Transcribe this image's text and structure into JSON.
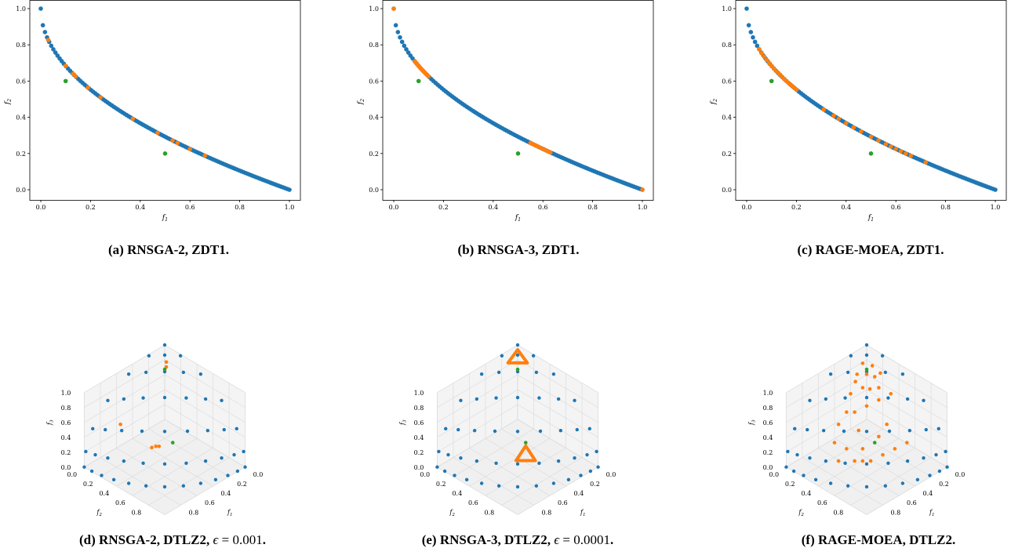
{
  "colors": {
    "pareto": "#1f77b4",
    "solutions": "#ff7f0e",
    "reference": "#2ca02c"
  },
  "captions": {
    "a": "(a) RNSGA-2, ZDT1.",
    "b": "(b) RNSGA-3, ZDT1.",
    "c": "(c) RAGE-MOEA, ZDT1.",
    "d_prefix": "(d) RNSGA-2, DTLZ2, ",
    "d_eps": "ϵ",
    "d_value": " = 0.001",
    "d_suffix": ".",
    "e_prefix": "(e) RNSGA-3, DTLZ2, ",
    "e_eps": "ϵ",
    "e_value": " = 0.0001",
    "e_suffix": ".",
    "f": "(f) RAGE-MOEA, DTLZ2."
  },
  "chart_data": [
    {
      "type": "scatter",
      "id": "a",
      "xlabel": "f1",
      "ylabel": "f2",
      "xlim": [
        0,
        1
      ],
      "ylim": [
        0,
        1
      ],
      "xticks": [
        "0.0",
        "0.2",
        "0.4",
        "0.6",
        "0.8",
        "1.0"
      ],
      "yticks": [
        "0.0",
        "0.2",
        "0.4",
        "0.6",
        "0.8",
        "1.0"
      ],
      "series": [
        {
          "role": "pareto",
          "front": "1-sqrt(x)",
          "count": 120
        },
        {
          "role": "solutions",
          "x": [
            0.03,
            0.1,
            0.13,
            0.14,
            0.19,
            0.24,
            0.37,
            0.47,
            0.53,
            0.55,
            0.6,
            0.66
          ]
        },
        {
          "role": "reference",
          "x": [
            0.1,
            0.5
          ],
          "y": [
            0.6,
            0.2
          ]
        }
      ]
    },
    {
      "type": "scatter",
      "id": "b",
      "xlabel": "f1",
      "ylabel": "f2",
      "xlim": [
        0,
        1
      ],
      "ylim": [
        0,
        1
      ],
      "xticks": [
        "0.0",
        "0.2",
        "0.4",
        "0.6",
        "0.8",
        "1.0"
      ],
      "yticks": [
        "0.0",
        "0.2",
        "0.4",
        "0.6",
        "0.8",
        "1.0"
      ],
      "series": [
        {
          "role": "pareto",
          "front": "1-sqrt(x)",
          "count": 120
        },
        {
          "role": "solutions",
          "x": [
            0.0,
            0.085,
            0.088,
            0.09,
            0.093,
            0.096,
            0.1,
            0.105,
            0.11,
            0.115,
            0.12,
            0.125,
            0.13,
            0.135,
            0.14,
            0.55,
            0.56,
            0.57,
            0.58,
            0.59,
            0.6,
            0.61,
            0.62,
            0.63,
            1.0
          ]
        },
        {
          "role": "reference",
          "x": [
            0.1,
            0.5
          ],
          "y": [
            0.6,
            0.2
          ]
        }
      ]
    },
    {
      "type": "scatter",
      "id": "c",
      "xlabel": "f1",
      "ylabel": "f2",
      "xlim": [
        0,
        1
      ],
      "ylim": [
        0,
        1
      ],
      "xticks": [
        "0.0",
        "0.2",
        "0.4",
        "0.6",
        "0.8",
        "1.0"
      ],
      "yticks": [
        "0.0",
        "0.2",
        "0.4",
        "0.6",
        "0.8",
        "1.0"
      ],
      "series": [
        {
          "role": "pareto",
          "front": "1-sqrt(x)",
          "count": 120
        },
        {
          "role": "solutions",
          "x": [
            0.05,
            0.06,
            0.07,
            0.08,
            0.09,
            0.1,
            0.11,
            0.12,
            0.13,
            0.14,
            0.15,
            0.16,
            0.17,
            0.18,
            0.19,
            0.2,
            0.31,
            0.35,
            0.37,
            0.4,
            0.43,
            0.46,
            0.5,
            0.53,
            0.56,
            0.58,
            0.6,
            0.62,
            0.64,
            0.66,
            0.72
          ]
        },
        {
          "role": "reference",
          "x": [
            0.1,
            0.5
          ],
          "y": [
            0.6,
            0.2
          ]
        }
      ]
    },
    {
      "type": "scatter3d",
      "id": "d",
      "axes": [
        "f1",
        "f2",
        "f3"
      ],
      "ticks": [
        "0.0",
        "0.2",
        "0.4",
        "0.6",
        "0.8",
        "1.0"
      ],
      "series": [
        {
          "role": "pareto",
          "grid": "simplex",
          "divisions": 12
        },
        {
          "role": "solutions",
          "points": [
            [
              0.45,
              0.38,
              0.17
            ],
            [
              0.47,
              0.36,
              0.17
            ],
            [
              0.5,
              0.34,
              0.16
            ],
            [
              0.08,
              0.1,
              0.82
            ],
            [
              0.06,
              0.08,
              0.86
            ],
            [
              0.6,
              0.05,
              0.35
            ]
          ]
        },
        {
          "role": "reference",
          "points": [
            [
              0.35,
              0.45,
              0.2
            ],
            [
              0.1,
              0.1,
              0.8
            ]
          ]
        }
      ]
    },
    {
      "type": "scatter3d",
      "id": "e",
      "axes": [
        "f1",
        "f2",
        "f3"
      ],
      "ticks": [
        "0.0",
        "0.2",
        "0.4",
        "0.6",
        "0.8",
        "1.0"
      ],
      "series": [
        {
          "role": "pareto",
          "grid": "simplex",
          "divisions": 12
        },
        {
          "role": "solutions",
          "cluster": "triangle",
          "center": [
            0.4,
            0.5,
            0.1
          ],
          "size": 0.12
        },
        {
          "role": "solutions",
          "cluster": "triangle",
          "center": [
            0.05,
            0.05,
            0.9
          ],
          "size": 0.12
        },
        {
          "role": "reference",
          "points": [
            [
              0.35,
              0.45,
              0.2
            ],
            [
              0.1,
              0.1,
              0.8
            ]
          ]
        }
      ]
    },
    {
      "type": "scatter3d",
      "id": "f",
      "axes": [
        "f1",
        "f2",
        "f3"
      ],
      "ticks": [
        "0.0",
        "0.2",
        "0.4",
        "0.6",
        "0.8",
        "1.0"
      ],
      "series": [
        {
          "role": "pareto",
          "grid": "simplex",
          "divisions": 12
        },
        {
          "role": "solutions",
          "points": [
            [
              0.1,
              0.05,
              0.85
            ],
            [
              0.05,
              0.12,
              0.83
            ],
            [
              0.12,
              0.12,
              0.76
            ],
            [
              0.03,
              0.2,
              0.77
            ],
            [
              0.18,
              0.06,
              0.76
            ],
            [
              0.2,
              0.15,
              0.65
            ],
            [
              0.1,
              0.25,
              0.65
            ],
            [
              0.25,
              0.25,
              0.5
            ],
            [
              0.05,
              0.35,
              0.6
            ],
            [
              0.3,
              0.1,
              0.6
            ],
            [
              0.15,
              0.3,
              0.55
            ],
            [
              0.35,
              0.2,
              0.45
            ],
            [
              0.4,
              0.3,
              0.3
            ],
            [
              0.45,
              0.4,
              0.15
            ],
            [
              0.5,
              0.45,
              0.05
            ],
            [
              0.3,
              0.45,
              0.25
            ],
            [
              0.55,
              0.3,
              0.15
            ],
            [
              0.6,
              0.2,
              0.2
            ],
            [
              0.35,
              0.55,
              0.1
            ],
            [
              0.25,
              0.6,
              0.15
            ],
            [
              0.45,
              0.5,
              0.05
            ],
            [
              0.2,
              0.45,
              0.35
            ],
            [
              0.5,
              0.15,
              0.35
            ],
            [
              0.65,
              0.3,
              0.05
            ],
            [
              0.15,
              0.65,
              0.2
            ],
            [
              0.4,
              0.15,
              0.45
            ],
            [
              0.55,
              0.4,
              0.05
            ],
            [
              0.08,
              0.18,
              0.74
            ],
            [
              0.16,
              0.2,
              0.64
            ],
            [
              0.22,
              0.08,
              0.7
            ]
          ]
        },
        {
          "role": "reference",
          "points": [
            [
              0.35,
              0.45,
              0.2
            ],
            [
              0.1,
              0.1,
              0.8
            ]
          ]
        }
      ]
    }
  ]
}
